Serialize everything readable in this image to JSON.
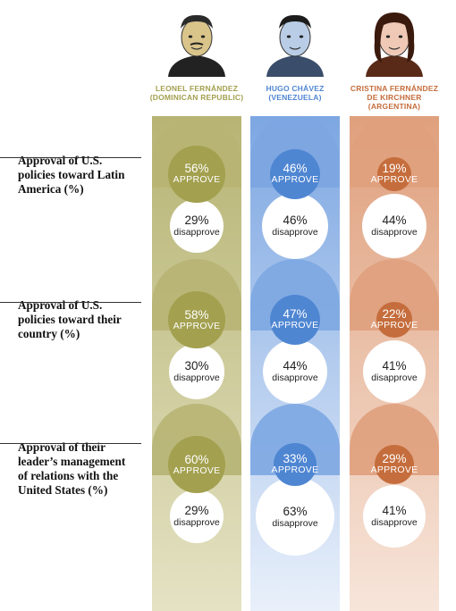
{
  "leaders": [
    {
      "name_line1": "LEONEL FERNÁNDEZ",
      "name_line2": "(DOMINICAN REPUBLIC)",
      "name_line3": "",
      "color": "#a3a04f",
      "light": "#e4e2c3",
      "dark": "#b7b474",
      "portrait": "fernandez-portrait"
    },
    {
      "name_line1": "HUGO CHÁVEZ",
      "name_line2": "(VENEZUELA)",
      "name_line3": "",
      "color": "#4f86d2",
      "light": "#e9f0fa",
      "dark": "#7da7e2",
      "portrait": "chavez-portrait"
    },
    {
      "name_line1": "CRISTINA FERNÁNDEZ",
      "name_line2": "DE KIRCHNER",
      "name_line3": "(ARGENTINA)",
      "color": "#c56d3c",
      "light": "#f7e5da",
      "dark": "#dfa07d",
      "portrait": "kirchner-portrait"
    }
  ],
  "rows": [
    {
      "label": "Approval of U.S. policies toward Latin America (%)"
    },
    {
      "label": "Approval of U.S. policies toward their country (%)"
    },
    {
      "label": "Approval of their leader’s management of relations with the United States (%)"
    }
  ],
  "approve_word": "APPROVE",
  "disapprove_word": "disapprove",
  "chart_data": {
    "type": "table",
    "series": [
      {
        "name": "LEONEL FERNÁNDEZ (DOMINICAN REPUBLIC)",
        "approve": [
          56,
          58,
          60
        ],
        "disapprove": [
          29,
          30,
          29
        ]
      },
      {
        "name": "HUGO CHÁVEZ (VENEZUELA)",
        "approve": [
          46,
          47,
          33
        ],
        "disapprove": [
          46,
          44,
          63
        ]
      },
      {
        "name": "CRISTINA FERNÁNDEZ DE KIRCHNER (ARGENTINA)",
        "approve": [
          19,
          22,
          29
        ],
        "disapprove": [
          44,
          41,
          41
        ]
      }
    ]
  }
}
